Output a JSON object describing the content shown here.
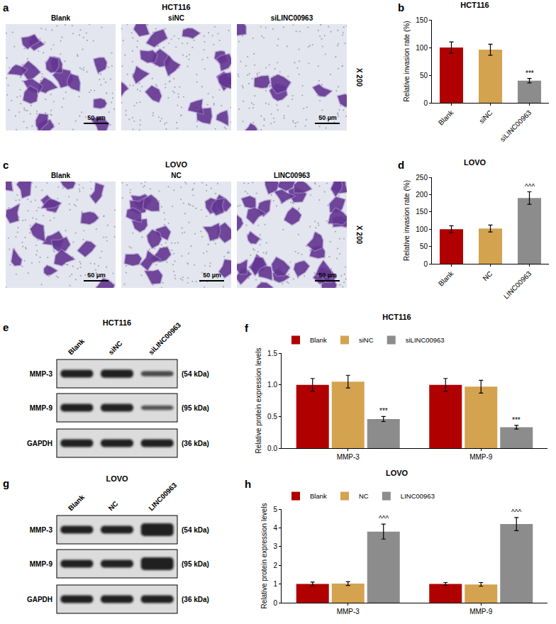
{
  "images": [
    {
      "panel": "a",
      "title": "HCT116",
      "labels": [
        "Blank",
        "siNC",
        "siLINC00963"
      ],
      "scale_bars": [
        "50 µm",
        null,
        "50 µm"
      ],
      "magnification": "X 200"
    },
    {
      "panel": "c",
      "title": "LOVO",
      "labels": [
        "Blank",
        "NC",
        "LINC00963"
      ],
      "scale_bars": [
        "50 µm",
        "50 µm",
        "50 µm"
      ],
      "magnification": "X 200"
    }
  ],
  "blots": [
    {
      "panel": "e",
      "title": "HCT116",
      "lanes": [
        "Blank",
        "siNC",
        "siLINC00963"
      ],
      "proteins": [
        {
          "name": "MMP-3",
          "size": "(54 kDa)"
        },
        {
          "name": "MMP-9",
          "size": "(95 kDa)"
        },
        {
          "name": "GAPDH",
          "size": "(36 kDa)"
        }
      ]
    },
    {
      "panel": "g",
      "title": "LOVO",
      "lanes": [
        "Blank",
        "NC",
        "LINC00963"
      ],
      "proteins": [
        {
          "name": "MMP-3",
          "size": "(54 kDa)"
        },
        {
          "name": "MMP-9",
          "size": "(95 kDa)"
        },
        {
          "name": "GAPDH",
          "size": "(36 kDa)"
        }
      ]
    }
  ],
  "chart_data": [
    {
      "panel": "b",
      "type": "bar",
      "title": "HCT116",
      "y_label": "Relative invasion rate (%)",
      "categories": [
        "Blank",
        "siNC",
        "siLINC00963"
      ],
      "values": [
        100,
        96,
        40
      ],
      "errors": [
        10,
        10,
        4
      ],
      "colors": [
        "#b00000",
        "#d4a350",
        "#8c8c8c"
      ],
      "significance": [
        null,
        null,
        "***"
      ],
      "ylim": [
        0,
        150
      ],
      "yticks": [
        0,
        50,
        100,
        150
      ],
      "grid": false
    },
    {
      "panel": "d",
      "type": "bar",
      "title": "LOVO",
      "y_label": "Relative invasion rate (%)",
      "categories": [
        "Blank",
        "NC",
        "LINC00963"
      ],
      "values": [
        100,
        102,
        190
      ],
      "errors": [
        10,
        10,
        18
      ],
      "colors": [
        "#b00000",
        "#d4a350",
        "#8c8c8c"
      ],
      "significance": [
        null,
        null,
        "^^^"
      ],
      "ylim": [
        0,
        250
      ],
      "yticks": [
        0,
        50,
        100,
        150,
        200,
        250
      ],
      "grid": false
    },
    {
      "panel": "f",
      "type": "bar",
      "title": "HCT116",
      "y_label": "Relative protein expression levels",
      "categories": [
        "MMP-3",
        "MMP-9"
      ],
      "series": [
        {
          "name": "Blank",
          "color": "#b00000",
          "values": [
            1.0,
            1.0
          ],
          "errors": [
            0.1,
            0.1
          ]
        },
        {
          "name": "siNC",
          "color": "#d4a350",
          "values": [
            1.05,
            0.97
          ],
          "errors": [
            0.1,
            0.1
          ]
        },
        {
          "name": "siLINC00963",
          "color": "#8c8c8c",
          "values": [
            0.46,
            0.33
          ],
          "errors": [
            0.04,
            0.03
          ],
          "significance": [
            "***",
            "***"
          ]
        }
      ],
      "ylim": [
        0,
        1.5
      ],
      "yticks": [
        {
          "value": 0,
          "label": "0.0"
        },
        {
          "value": 0.5,
          "label": "0.5"
        },
        {
          "value": 1,
          "label": "1.0"
        },
        {
          "value": 1.5,
          "label": "1.5"
        }
      ],
      "legend": "top left",
      "grid": false
    },
    {
      "panel": "h",
      "type": "bar",
      "title": "LOVO",
      "y_label": "Relative protein expression levels",
      "categories": [
        "MMP-3",
        "MMP-9"
      ],
      "series": [
        {
          "name": "Blank",
          "color": "#b00000",
          "values": [
            1.0,
            1.0
          ],
          "errors": [
            0.1,
            0.08
          ]
        },
        {
          "name": "NC",
          "color": "#d4a350",
          "values": [
            1.02,
            0.98
          ],
          "errors": [
            0.1,
            0.1
          ]
        },
        {
          "name": "LINC00963",
          "color": "#8c8c8c",
          "values": [
            3.8,
            4.2
          ],
          "errors": [
            0.4,
            0.35
          ],
          "significance": [
            "^^^",
            "^^^"
          ]
        }
      ],
      "ylim": [
        0,
        5
      ],
      "yticks": [
        0,
        1,
        2,
        3,
        4,
        5
      ],
      "legend": "top left",
      "grid": false
    }
  ]
}
